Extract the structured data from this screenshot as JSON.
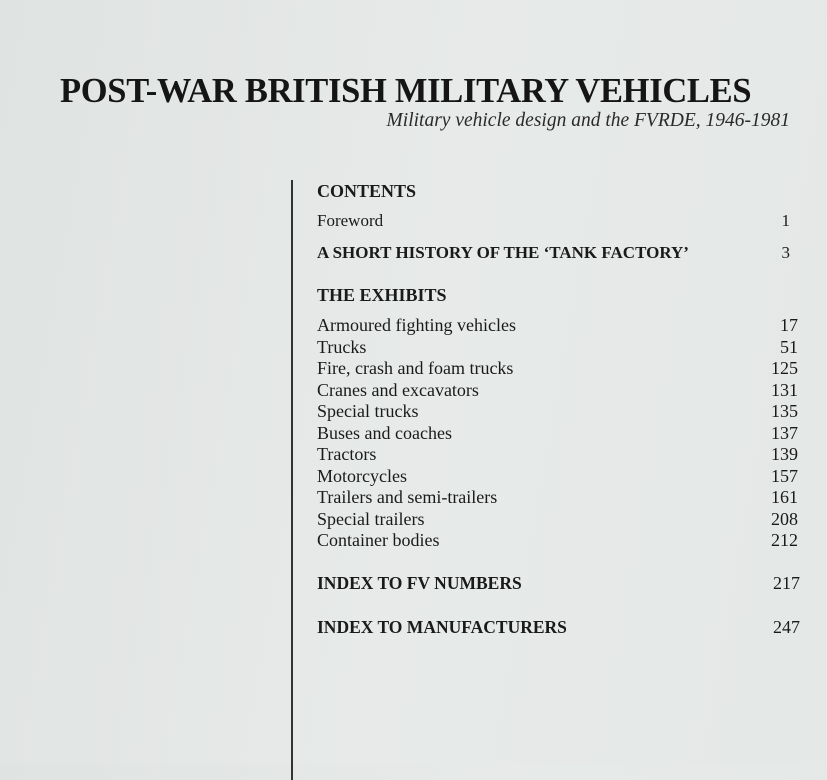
{
  "title": "POST-WAR BRITISH MILITARY VEHICLES",
  "subtitle": "Military vehicle design and the FVRDE, 1946-1981",
  "contents": {
    "heading": "CONTENTS",
    "foreword": {
      "label": "Foreword",
      "page": "1"
    },
    "history": {
      "label": "A SHORT HISTORY OF THE ‘TANK FACTORY’",
      "page": "3"
    },
    "exhibits_heading": "THE EXHIBITS",
    "exhibits": [
      {
        "label": "Armoured fighting vehicles",
        "page": "17"
      },
      {
        "label": "Trucks",
        "page": "51"
      },
      {
        "label": "Fire, crash and foam trucks",
        "page": "125"
      },
      {
        "label": "Cranes and excavators",
        "page": "131"
      },
      {
        "label": "Special trucks",
        "page": "135"
      },
      {
        "label": "Buses and coaches",
        "page": "137"
      },
      {
        "label": "Tractors",
        "page": "139"
      },
      {
        "label": "Motorcycles",
        "page": "157"
      },
      {
        "label": "Trailers and semi-trailers",
        "page": "161"
      },
      {
        "label": "Special trailers",
        "page": "208"
      },
      {
        "label": "Container bodies",
        "page": "212"
      }
    ],
    "index_fv": {
      "label": "INDEX TO FV NUMBERS",
      "page": "217"
    },
    "index_mfr": {
      "label": "INDEX TO MANUFACTURERS",
      "page": "247"
    }
  }
}
